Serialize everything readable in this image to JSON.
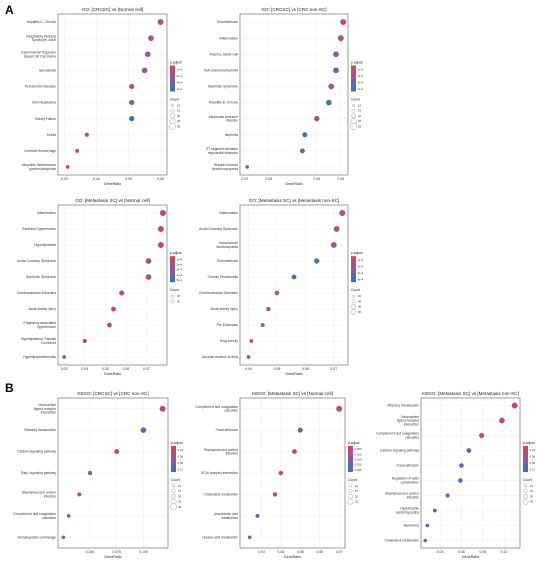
{
  "figure": {
    "panel_labels": [
      "A",
      "B"
    ],
    "xlabel": "GeneRatio",
    "color_legend_title": "p.adjust",
    "size_legend_title": "Count",
    "colors": {
      "low_padj": "#e0424a",
      "high_padj": "#3a6fc4"
    }
  },
  "chart_data": [
    {
      "type": "scatter",
      "title": "GO: [CRCSC] vs [Normal cell]",
      "xlabel": "GeneRatio",
      "xlim": [
        0.3,
        0.06
      ],
      "xticks": [
        "0.03",
        "0.04",
        "0.05",
        "0.06"
      ],
      "categories": [
        "Hepatitis C, Chronic",
        "Respiratory Distress Syndrome, Adult",
        "Experimental Organism Basal Cell Carcinoma",
        "Sarcoidosis",
        "Periodontal Diseases",
        "Skin Neoplasms",
        "Kidney Failure",
        "Keloid",
        "Cerebral Hemorrhage",
        "Idiopathic membranous glomerulonephritis"
      ],
      "gene_ratio": [
        0.06,
        0.057,
        0.056,
        0.055,
        0.051,
        0.051,
        0.051,
        0.037,
        0.034,
        0.031
      ],
      "color_scale": [
        0.4,
        0.2
      ],
      "color_rank": [
        0.3,
        0.45,
        0.5,
        0.4,
        0.35,
        0.55,
        1.0,
        0.15,
        0.1,
        0.1
      ],
      "count_legend": [
        "10",
        "15",
        "20",
        "25",
        "30"
      ],
      "padj_legend": [
        "1e-4",
        "2e-4",
        "3e-4",
        "4e-4"
      ]
    },
    {
      "type": "scatter",
      "title": "GO: [CRCSC] vs [CRC non-SC]",
      "xlabel": "GeneRatio",
      "xlim": [
        0.3,
        0.06
      ],
      "xticks": [
        "0.02",
        "0.03",
        "0.05",
        "0.06"
      ],
      "categories": [
        "Endometriosis",
        "Inflammation",
        "Anemia, Sickle Cell",
        "IGA Glomerulonephritis",
        "Nephrotic Syndrome",
        "Hepatitis B, Chronic",
        "Intraocular pressure disorder",
        "Nephritis",
        "ST segment elevation myocardial infarction",
        "Heparin-induced thrombocytopenia"
      ],
      "gene_ratio": [
        0.061,
        0.06,
        0.058,
        0.058,
        0.056,
        0.055,
        0.05,
        0.045,
        0.044,
        0.021
      ],
      "color_scale": [
        0.4,
        0.2
      ],
      "color_rank": [
        0.2,
        0.3,
        0.5,
        0.6,
        0.45,
        0.9,
        0.25,
        0.95,
        0.85,
        0.5
      ],
      "count_legend": [
        "10",
        "15",
        "20",
        "25",
        "30"
      ],
      "padj_legend": [
        "1e-4",
        "2e-4",
        "3e-4",
        "4e-4"
      ]
    },
    {
      "type": "scatter",
      "title": "GO: [Metastasis SC] vs [Normal cell]",
      "xlabel": "GeneRatio",
      "xlim": [
        0.3,
        0.06
      ],
      "xticks": [
        "0.03",
        "0.04",
        "0.05",
        "0.06",
        "0.07"
      ],
      "categories": [
        "Inflammation",
        "Essential Hypertension",
        "Hyperlipidemia",
        "Acute Coronary Syndrome",
        "Nephrotic Syndrome",
        "Cerebrovascular Disorders",
        "Acute kidney injury",
        "Pregnancy associated hypertension",
        "Hyperlipidemia, Familial Combined",
        "Hyperlipoproteinemias"
      ],
      "gene_ratio": [
        0.078,
        0.077,
        0.077,
        0.071,
        0.071,
        0.058,
        0.054,
        0.052,
        0.04,
        0.03
      ],
      "color_scale": [
        0.4,
        0.2
      ],
      "color_rank": [
        0.15,
        0.15,
        0.15,
        0.3,
        0.2,
        0.15,
        0.1,
        0.15,
        0.1,
        0.9
      ],
      "count_legend": [
        "20",
        "30"
      ],
      "padj_legend": [
        "1e-4",
        "2e-4",
        "3e-4",
        "4e-4",
        "5e-4"
      ]
    },
    {
      "type": "scatter",
      "title": "GO: [Metastasis SC] vs [Metastasis non-SC]",
      "xlabel": "GeneRatio",
      "xlim": [
        0.3,
        0.06
      ],
      "xticks": [
        "0.04",
        "0.05",
        "0.06",
        "0.07"
      ],
      "categories": [
        "Inflammation",
        "Acute Coronary Syndrome",
        "Nonalcoholic Steatohepatitis",
        "Endometriosis",
        "Chronic Periodontitis",
        "Cerebrovascular Disorders",
        "Acute kidney injury",
        "Pre-Eclampsia",
        "Drug toxicity",
        "Adverse reaction to drug"
      ],
      "gene_ratio": [
        0.073,
        0.071,
        0.07,
        0.064,
        0.056,
        0.05,
        0.047,
        0.045,
        0.041,
        0.04
      ],
      "color_scale": [
        0.4,
        0.2
      ],
      "color_rank": [
        0.15,
        0.3,
        0.4,
        0.9,
        0.9,
        0.2,
        0.15,
        0.15,
        0.1,
        0.1
      ],
      "count_legend": [
        "20",
        "30",
        "40",
        "50"
      ],
      "padj_legend": [
        "1e-4",
        "2e-4",
        "3e-4",
        "4e-4"
      ]
    },
    {
      "type": "scatter",
      "title": "KEGG: [CRCSC] vs [CRC non-SC]",
      "xlabel": "GeneRatio",
      "xlim": [
        0.3,
        0.06
      ],
      "xticks": [
        "0.050",
        "0.075",
        "0.100"
      ],
      "categories": [
        "Neuroactive ligand-receptor interaction",
        "Olfactory transduction",
        "Calcium signaling pathway",
        "Rap1 signaling pathway",
        "Staphylococcus aureus infection",
        "Complement and coagulation cascades",
        "Hematopoietic cell lineage"
      ],
      "gene_ratio": [
        0.118,
        0.1,
        0.075,
        0.05,
        0.04,
        0.03,
        0.025
      ],
      "color_scale": [
        0.4,
        0.2
      ],
      "color_rank": [
        0.15,
        0.9,
        0.2,
        0.85,
        0.15,
        0.15,
        0.35
      ],
      "count_legend": [
        "10",
        "15",
        "20",
        "25",
        "30"
      ],
      "padj_legend": [
        "0.03",
        "0.06",
        "0.09",
        "0.12"
      ]
    },
    {
      "type": "scatter",
      "title": "KEGG: [Metastasis SC] vs [Normal cell]",
      "xlabel": "GeneRatio",
      "xlim": [
        0.3,
        0.06
      ],
      "xticks": [
        "0.03",
        "0.04",
        "0.05",
        "0.06",
        "0.07"
      ],
      "categories": [
        "Complement and coagulation cascades",
        "Focal adhesion",
        "Staphylococcus aureus infection",
        "ECM-receptor interaction",
        "Cholesterol metabolism",
        "Arachidonic acid metabolism",
        "Linoleic acid metabolism"
      ],
      "gene_ratio": [
        0.07,
        0.05,
        0.047,
        0.04,
        0.037,
        0.028,
        0.024
      ],
      "color_scale": [
        0.4,
        0.2
      ],
      "color_rank": [
        0.1,
        0.85,
        0.2,
        0.25,
        0.2,
        0.85,
        0.5
      ],
      "count_legend": [
        "10",
        "15",
        "20",
        "25"
      ],
      "padj_legend": [
        "0.005",
        "0.010",
        "0.015",
        "0.020",
        "0.025"
      ]
    },
    {
      "type": "scatter",
      "title": "KEGG: [Metastasis SC] vs [Metastasis non-SC]",
      "xlabel": "GeneRatio",
      "xlim": [
        0.3,
        0.06
      ],
      "xticks": [
        "0.04",
        "0.06",
        "0.08",
        "0.10"
      ],
      "categories": [
        "Olfactory transduction",
        "Neuroactive ligand-receptor interaction",
        "Complement and coagulation cascades",
        "Calcium signaling pathway",
        "Focal adhesion",
        "Regulation of actin cytoskeleton",
        "Staphylococcus aureus infection",
        "Hypertrophic cardiomyopathy",
        "Melanoma",
        "Cholesterol metabolism"
      ],
      "gene_ratio": [
        0.11,
        0.098,
        0.079,
        0.067,
        0.06,
        0.059,
        0.047,
        0.035,
        0.028,
        0.026
      ],
      "color_scale": [
        0.4,
        0.2
      ],
      "color_rank": [
        0.15,
        0.15,
        0.2,
        0.8,
        0.85,
        0.9,
        0.2,
        0.85,
        0.9,
        0.9
      ],
      "count_legend": [
        "10",
        "20",
        "30",
        "40"
      ],
      "padj_legend": [
        "0.03",
        "0.06",
        "0.09",
        "0.12"
      ]
    }
  ]
}
